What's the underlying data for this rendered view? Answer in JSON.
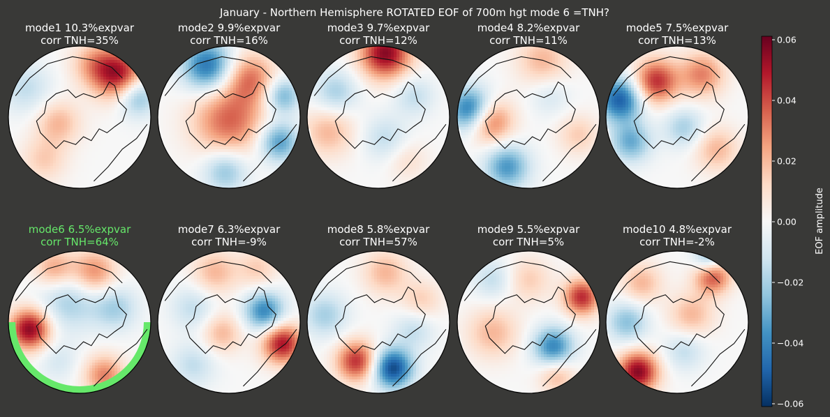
{
  "figure": {
    "title": "January - Northern Hemisphere ROTATED EOF of 700m hgt mode 6 =TNH?"
  },
  "colors": {
    "background": "#393937",
    "text": "#ffffff",
    "highlight": "#66e86a",
    "coast": "#111111"
  },
  "chart_data": {
    "type": "heatmap",
    "title": "January - Northern Hemisphere ROTATED EOF of 700m hgt mode 6 =TNH?",
    "colormap": "RdBu_r",
    "colorbar": {
      "label": "EOF amplitude",
      "range": [
        -0.06,
        0.06
      ],
      "ticks": [
        "0.06",
        "0.04",
        "0.02",
        "0.00",
        "−0.02",
        "−0.04",
        "−0.06"
      ]
    },
    "panels": [
      {
        "mode": 1,
        "title": "mode1 10.3%expvar",
        "corr": "corr TNH=35%",
        "expvar": 10.3,
        "corr_pct": 35,
        "highlight": false,
        "blobs": [
          [
            0.02,
            -0.3,
            -0.08,
            0.22
          ],
          [
            0.05,
            0.55,
            0.6,
            0.25
          ],
          [
            -0.03,
            0.8,
            0.3,
            0.2
          ],
          [
            0.02,
            0.2,
            0.75,
            0.22
          ],
          [
            -0.015,
            -0.75,
            0.4,
            0.25
          ],
          [
            0.015,
            -0.5,
            -0.6,
            0.22
          ]
        ]
      },
      {
        "mode": 2,
        "title": "mode2 9.9%expvar",
        "corr": "corr TNH=16%",
        "expvar": 9.9,
        "corr_pct": 16,
        "highlight": false,
        "blobs": [
          [
            -0.045,
            -0.3,
            0.72,
            0.25
          ],
          [
            0.035,
            0,
            -0.05,
            0.35
          ],
          [
            0.03,
            0.3,
            0.55,
            0.25
          ],
          [
            -0.035,
            0.7,
            -0.35,
            0.2
          ],
          [
            -0.025,
            -0.05,
            -0.75,
            0.22
          ],
          [
            -0.03,
            0.75,
            0.3,
            0.18
          ]
        ]
      },
      {
        "mode": 3,
        "title": "mode3 9.7%expvar",
        "corr": "corr TNH=12%",
        "expvar": 9.7,
        "corr_pct": 12,
        "highlight": false,
        "blobs": [
          [
            0.055,
            0.1,
            0.9,
            0.25
          ],
          [
            -0.02,
            -0.6,
            0.35,
            0.22
          ],
          [
            0.02,
            -0.7,
            -0.2,
            0.25
          ],
          [
            -0.015,
            0.1,
            -0.3,
            0.22
          ],
          [
            0.01,
            0.4,
            -0.6,
            0.2
          ],
          [
            -0.015,
            0.5,
            0.3,
            0.2
          ]
        ]
      },
      {
        "mode": 4,
        "title": "mode4 8.2%expvar",
        "corr": "corr TNH=11%",
        "expvar": 8.2,
        "corr_pct": 11,
        "highlight": false,
        "blobs": [
          [
            -0.05,
            -0.8,
            0.1,
            0.22
          ],
          [
            0.04,
            -0.55,
            -0.05,
            0.22
          ],
          [
            -0.035,
            -0.3,
            -0.7,
            0.22
          ],
          [
            0.02,
            0.2,
            0.8,
            0.25
          ],
          [
            0.015,
            0.7,
            -0.25,
            0.2
          ],
          [
            -0.01,
            0.3,
            0.3,
            0.2
          ]
        ]
      },
      {
        "mode": 5,
        "title": "mode5 7.5%expvar",
        "corr": "corr TNH=13%",
        "expvar": 7.5,
        "corr_pct": 13,
        "highlight": false,
        "blobs": [
          [
            -0.05,
            -0.8,
            0.25,
            0.22
          ],
          [
            0.045,
            -0.3,
            0.5,
            0.22
          ],
          [
            0.03,
            0.35,
            0.6,
            0.22
          ],
          [
            -0.03,
            -0.65,
            -0.35,
            0.2
          ],
          [
            0.02,
            0.55,
            -0.45,
            0.22
          ],
          [
            -0.02,
            0.1,
            -0.15,
            0.2
          ]
        ]
      },
      {
        "mode": 6,
        "title": "mode6 6.5%expvar",
        "corr": "corr TNH=64%",
        "expvar": 6.5,
        "corr_pct": 64,
        "highlight": true,
        "blobs": [
          [
            0.055,
            -0.7,
            -0.1,
            0.2
          ],
          [
            -0.02,
            -0.15,
            0.3,
            0.3
          ],
          [
            0.03,
            0.2,
            0.7,
            0.22
          ],
          [
            0.025,
            -0.35,
            0.75,
            0.2
          ],
          [
            -0.02,
            0.5,
            0.2,
            0.22
          ],
          [
            0.03,
            0.35,
            -0.75,
            0.2
          ],
          [
            -0.01,
            -0.3,
            -0.55,
            0.2
          ]
        ]
      },
      {
        "mode": 7,
        "title": "mode7 6.3%expvar",
        "corr": "corr TNH=-9%",
        "expvar": 6.3,
        "corr_pct": -9,
        "highlight": false,
        "blobs": [
          [
            0.05,
            0.75,
            -0.3,
            0.2
          ],
          [
            -0.04,
            0.5,
            0.15,
            0.2
          ],
          [
            0.02,
            -0.2,
            0.7,
            0.22
          ],
          [
            0.015,
            0.4,
            0.75,
            0.2
          ],
          [
            -0.015,
            -0.5,
            0.2,
            0.22
          ],
          [
            0.02,
            -0.1,
            -0.15,
            0.2
          ],
          [
            -0.015,
            -0.5,
            -0.6,
            0.22
          ]
        ]
      },
      {
        "mode": 8,
        "title": "mode8 5.8%expvar",
        "corr": "corr TNH=57%",
        "expvar": 5.8,
        "corr_pct": 57,
        "highlight": false,
        "blobs": [
          [
            0.045,
            -0.3,
            -0.55,
            0.2
          ],
          [
            -0.055,
            0.2,
            -0.65,
            0.2
          ],
          [
            -0.02,
            -0.75,
            0.1,
            0.22
          ],
          [
            0.02,
            0.1,
            0.7,
            0.22
          ],
          [
            0.015,
            0.6,
            0.3,
            0.2
          ],
          [
            -0.015,
            0.5,
            -0.1,
            0.2
          ]
        ]
      },
      {
        "mode": 9,
        "title": "mode9 5.5%expvar",
        "corr": "corr TNH=5%",
        "expvar": 5.5,
        "corr_pct": 5,
        "highlight": false,
        "blobs": [
          [
            0.045,
            0.75,
            0.35,
            0.18
          ],
          [
            -0.04,
            0.35,
            -0.35,
            0.2
          ],
          [
            0.02,
            -0.5,
            -0.15,
            0.25
          ],
          [
            0.015,
            0,
            0.6,
            0.22
          ],
          [
            -0.015,
            -0.5,
            0.6,
            0.2
          ],
          [
            0.02,
            0.4,
            -0.75,
            0.18
          ]
        ]
      },
      {
        "mode": 10,
        "title": "mode10 4.8%expvar",
        "corr": "corr TNH=-2%",
        "expvar": 4.8,
        "corr_pct": -2,
        "highlight": false,
        "blobs": [
          [
            0.055,
            -0.55,
            -0.7,
            0.2
          ],
          [
            0.04,
            0.5,
            0.65,
            0.18
          ],
          [
            -0.03,
            0.45,
            0.9,
            0.15
          ],
          [
            -0.025,
            -0.7,
            0.0,
            0.2
          ],
          [
            0.02,
            0.2,
            0.1,
            0.22
          ],
          [
            -0.015,
            0.1,
            -0.4,
            0.2
          ],
          [
            0.02,
            -0.5,
            0.55,
            0.2
          ]
        ]
      }
    ]
  }
}
